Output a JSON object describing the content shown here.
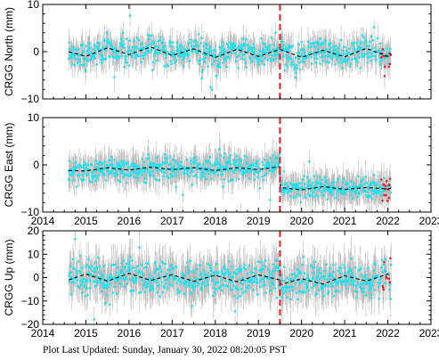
{
  "footer_text": "Plot Last Updated:   Sunday, January 30, 2022 08:20:05 PST",
  "colors": {
    "errorbar": "#b8b8b8",
    "point": "#19e3ef",
    "recent_point": "#e0202a",
    "model_line": "#000000",
    "event_line": "#e02020",
    "axis": "#000000"
  },
  "chart_data": [
    {
      "type": "scatter",
      "id": "north",
      "ylabel": "CRGG North (mm)",
      "xlim": [
        2014,
        2023
      ],
      "ylim": [
        -10,
        10
      ],
      "xticks": [
        2014,
        2015,
        2016,
        2017,
        2018,
        2019,
        2020,
        2021,
        2022,
        2023
      ],
      "xtick_labels": [
        "2014",
        "2015",
        "2016",
        "2017",
        "2018",
        "2019",
        "2020",
        "2021",
        "2022",
        "2023"
      ],
      "yticks": [
        -10,
        0,
        10
      ],
      "ytick_labels": [
        "−10",
        "0",
        "10"
      ],
      "show_xtick_labels": false,
      "data_start": 2014.6,
      "data_end": 2022.08,
      "offset_event": 2019.5,
      "offset_after": 0,
      "seasonal_amplitude": 1.2,
      "scatter_sigma": 1.4,
      "errorbar_half": 2.2,
      "red_points_from": 2021.85,
      "model": [
        [
          2014.6,
          0.0
        ],
        [
          2015.0,
          -1.0
        ],
        [
          2015.5,
          0.8
        ],
        [
          2016.0,
          -0.6
        ],
        [
          2016.5,
          1.0
        ],
        [
          2017.0,
          -0.8
        ],
        [
          2017.5,
          0.6
        ],
        [
          2018.0,
          -1.2
        ],
        [
          2018.5,
          0.5
        ],
        [
          2019.0,
          -1.0
        ],
        [
          2019.5,
          0.5
        ],
        [
          2020.0,
          -1.2
        ],
        [
          2020.5,
          0.3
        ],
        [
          2021.0,
          -1.1
        ],
        [
          2021.5,
          0.7
        ],
        [
          2022.0,
          -1.0
        ],
        [
          2022.08,
          -0.4
        ]
      ]
    },
    {
      "type": "scatter",
      "id": "east",
      "ylabel": "CRGG East (mm)",
      "xlim": [
        2014,
        2023
      ],
      "ylim": [
        -10,
        10
      ],
      "xticks": [
        2014,
        2015,
        2016,
        2017,
        2018,
        2019,
        2020,
        2021,
        2022,
        2023
      ],
      "xtick_labels": [
        "2014",
        "2015",
        "2016",
        "2017",
        "2018",
        "2019",
        "2020",
        "2021",
        "2022",
        "2023"
      ],
      "yticks": [
        -10,
        0,
        10
      ],
      "ytick_labels": [
        "−10",
        "0",
        "10"
      ],
      "show_xtick_labels": true,
      "data_start": 2014.6,
      "data_end": 2022.08,
      "offset_event": 2019.5,
      "offset_after": -3.8,
      "seasonal_amplitude": 0.6,
      "scatter_sigma": 1.2,
      "errorbar_half": 2.4,
      "red_points_from": 2021.85,
      "model": [
        [
          2014.6,
          -1.2
        ],
        [
          2015.0,
          -1.3
        ],
        [
          2015.5,
          -0.6
        ],
        [
          2016.0,
          -1.1
        ],
        [
          2016.5,
          -0.5
        ],
        [
          2017.0,
          -1.0
        ],
        [
          2017.5,
          -0.6
        ],
        [
          2018.0,
          -1.2
        ],
        [
          2018.5,
          -0.6
        ],
        [
          2019.0,
          -1.0
        ],
        [
          2019.49,
          -0.4
        ],
        [
          2019.51,
          -4.8
        ],
        [
          2020.0,
          -5.3
        ],
        [
          2020.5,
          -4.6
        ],
        [
          2021.0,
          -5.2
        ],
        [
          2021.5,
          -4.8
        ],
        [
          2022.0,
          -5.1
        ],
        [
          2022.08,
          -4.9
        ]
      ]
    },
    {
      "type": "scatter",
      "id": "up",
      "ylabel": "CRGG Up (mm)",
      "xlim": [
        2014,
        2023
      ],
      "ylim": [
        -20,
        20
      ],
      "xticks": [
        2014,
        2015,
        2016,
        2017,
        2018,
        2019,
        2020,
        2021,
        2022,
        2023
      ],
      "xtick_labels": [
        "2014",
        "2015",
        "2016",
        "2017",
        "2018",
        "2019",
        "2020",
        "2021",
        "2022",
        "2023"
      ],
      "yticks": [
        -20,
        -10,
        0,
        10,
        20
      ],
      "ytick_labels": [
        "−20",
        "−10",
        "0",
        "10",
        "20"
      ],
      "show_xtick_labels": true,
      "data_start": 2014.6,
      "data_end": 2022.08,
      "offset_event": 2019.5,
      "offset_after": 0,
      "seasonal_amplitude": 1.8,
      "scatter_sigma": 3.5,
      "errorbar_half": 6.5,
      "red_points_from": 2021.85,
      "model": [
        [
          2014.6,
          -1.0
        ],
        [
          2015.0,
          1.5
        ],
        [
          2015.5,
          -1.5
        ],
        [
          2016.0,
          1.8
        ],
        [
          2016.5,
          -1.2
        ],
        [
          2017.0,
          1.2
        ],
        [
          2017.5,
          -1.6
        ],
        [
          2018.0,
          1.0
        ],
        [
          2018.5,
          -1.8
        ],
        [
          2019.0,
          1.2
        ],
        [
          2019.49,
          -1.0
        ],
        [
          2019.51,
          -3.0
        ],
        [
          2020.0,
          -0.5
        ],
        [
          2020.5,
          -2.8
        ],
        [
          2021.0,
          0.8
        ],
        [
          2021.5,
          -1.5
        ],
        [
          2022.0,
          1.5
        ],
        [
          2022.08,
          0.5
        ]
      ]
    }
  ]
}
